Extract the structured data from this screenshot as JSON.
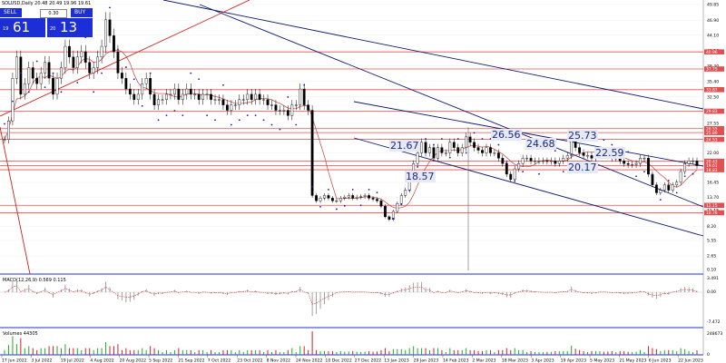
{
  "header": {
    "title": "SOLUSD,Daily  20.48 20.49 19.96 19.61"
  },
  "trade_panel": {
    "sell_label": "SELL",
    "buy_label": "BUY",
    "lot_value": "0.30",
    "bid_small": "19",
    "bid_big": "61",
    "ask_small": "20",
    "ask_big": "13"
  },
  "colors": {
    "grid": "#6a6a6a",
    "level_line": "#e05050",
    "trend_line": "#0d1a6e",
    "candle": "#000000",
    "sar": "#1a1aa8",
    "ma": "#c04040",
    "panel_sep": "#2233cc",
    "label_bg": "#e6e8f4"
  },
  "chart_data": {
    "type": "candlestick",
    "symbol": "SOLUSD",
    "timeframe": "Daily",
    "price_scale": [
      49.85,
      46.9,
      44.1,
      41.2,
      38.3,
      35.4,
      32.5,
      29.6,
      27.55,
      24.55,
      22.0,
      19.35,
      16.45,
      13.7,
      11.15,
      8.2,
      5.55,
      2.65,
      0.1
    ],
    "x_labels": [
      "17 Jun 2022",
      "3 Jul 2022",
      "19 Jul 2022",
      "4 Aug 2022",
      "20 Aug 2022",
      "5 Sep 2022",
      "21 Sep 2022",
      "7 Oct 2022",
      "23 Oct 2022",
      "8 Nov 2022",
      "24 Nov 2022",
      "10 Dec 2022",
      "27 Dec 2022",
      "13 Jan 2023",
      "29 Jan 2023",
      "14 Feb 2023",
      "2 Mar 2023",
      "18 Mar 2023",
      "3 Apr 2023",
      "19 Apr 2023",
      "5 May 2023",
      "21 May 2023",
      "6 Jun 2023",
      "22 Jun 2023"
    ],
    "level_tags": [
      "40.96",
      "37.75",
      "33.87",
      "29.83",
      "26.55",
      "25.80",
      "24.53",
      "20.43",
      "19.61",
      "18.83",
      "12.15",
      "10.76"
    ],
    "annotations": [
      "26.56",
      "25.73",
      "24.68",
      "22.59",
      "21.67",
      "20.17",
      "18.57"
    ],
    "close": [
      24.5,
      28,
      36,
      40,
      33,
      35,
      38,
      36,
      35,
      37,
      39,
      36,
      33,
      36,
      38,
      42,
      40,
      38,
      40,
      41,
      39,
      37,
      38,
      40,
      42,
      47,
      44,
      41,
      37,
      36,
      34,
      33,
      32,
      33,
      35,
      36,
      33,
      31,
      32,
      32,
      33,
      33,
      34,
      32,
      33,
      34,
      33,
      33,
      32,
      33,
      33,
      32,
      32,
      32,
      31,
      30,
      31,
      31,
      32,
      32,
      33,
      32,
      33,
      32,
      32,
      31,
      31,
      30,
      30,
      30,
      29,
      31,
      31,
      34,
      31,
      30,
      14,
      13,
      13.5,
      14,
      13.5,
      13,
      13,
      13.5,
      13.7,
      14,
      13.5,
      13.7,
      13.8,
      14,
      13.5,
      13.3,
      13,
      12,
      10,
      9.5,
      11,
      12.5,
      14,
      15,
      17,
      20,
      22,
      24,
      22,
      23,
      21,
      23,
      22,
      22,
      24,
      23,
      22,
      23,
      25,
      24,
      23,
      22.5,
      22,
      23,
      22,
      22,
      21,
      20,
      18,
      17,
      19,
      20,
      21,
      21,
      20.5,
      20.5,
      20.5,
      20.5,
      20.4,
      20.5,
      20,
      20.5,
      21,
      21.5,
      24.7,
      23,
      22,
      21.5,
      21.5,
      21,
      21.5,
      22,
      21.8,
      21.5,
      21,
      21,
      20.5,
      20,
      19.8,
      19.8,
      20,
      21,
      21,
      18,
      16,
      14.5,
      15,
      16,
      15,
      16,
      16.5,
      18.5,
      20,
      20.5,
      20.5,
      19.6
    ],
    "macd": {
      "label": "MACD(12,26,9) 0.569 0.115",
      "scale": [
        "3.491",
        "0.00",
        "-7.472"
      ]
    },
    "volumes": {
      "label": "Volumes 44305",
      "scale": [
        "248673",
        "0"
      ]
    },
    "log_scale": false,
    "grid": true
  }
}
